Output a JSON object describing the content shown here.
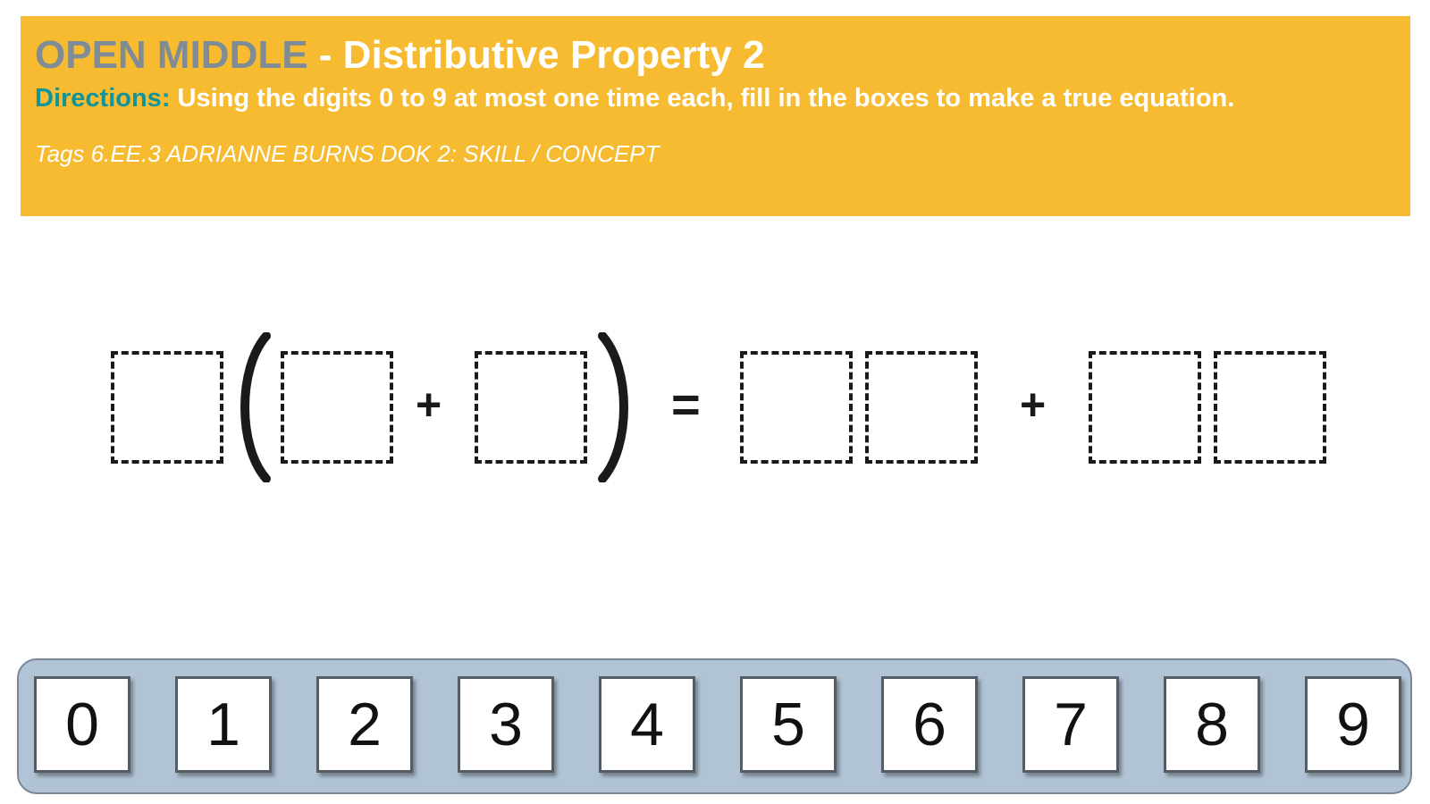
{
  "header": {
    "title_brand": "OPEN MIDDLE",
    "title_rest": " - Distributive Property 2",
    "directions_label": "Directions:",
    "directions_text": " Using the digits 0 to 9 at most one time each, fill in the boxes to make a true equation.",
    "tags": "Tags 6.EE.3 ADRIANNE BURNS DOK 2: SKILL / CONCEPT"
  },
  "equation": {
    "plus_inner": "+",
    "equals": "=",
    "plus_outer": "+"
  },
  "digit_bank": {
    "digits": [
      "0",
      "1",
      "2",
      "3",
      "4",
      "5",
      "6",
      "7",
      "8",
      "9"
    ]
  },
  "colors": {
    "header_bg": "#F6BB30",
    "brand_gray": "#7F8C95",
    "directions_teal": "#11949A",
    "bank_bg": "#B1C4D5"
  }
}
